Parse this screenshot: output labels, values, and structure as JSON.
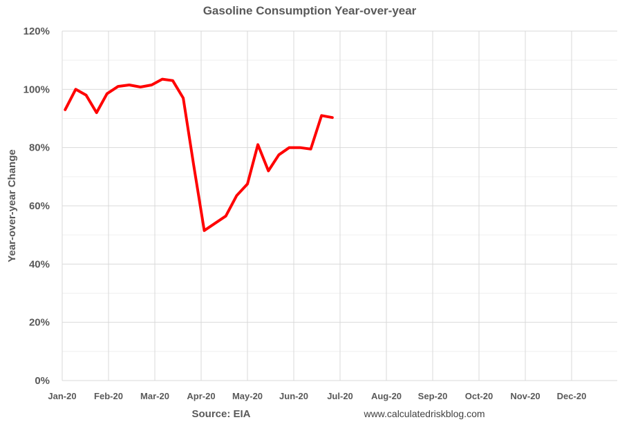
{
  "chart_data": {
    "type": "line",
    "title": "Gasoline Consumption Year-over-year",
    "ylabel": "Year-over-year Change",
    "xlabel": "",
    "ylim": [
      0,
      120
    ],
    "y_ticks": [
      "0%",
      "20%",
      "40%",
      "60%",
      "80%",
      "100%",
      "120%"
    ],
    "x_ticks": [
      "Jan-20",
      "Feb-20",
      "Mar-20",
      "Apr-20",
      "May-20",
      "Jun-20",
      "Jul-20",
      "Aug-20",
      "Sep-20",
      "Oct-20",
      "Nov-20",
      "Dec-20"
    ],
    "grid": true,
    "legend": "none",
    "series": [
      {
        "color": "#ff0000",
        "points": [
          {
            "x": "2020-01-03",
            "y": 93
          },
          {
            "x": "2020-01-10",
            "y": 100
          },
          {
            "x": "2020-01-17",
            "y": 98
          },
          {
            "x": "2020-01-24",
            "y": 92
          },
          {
            "x": "2020-01-31",
            "y": 98.5
          },
          {
            "x": "2020-02-07",
            "y": 101
          },
          {
            "x": "2020-02-14",
            "y": 101.5
          },
          {
            "x": "2020-02-21",
            "y": 100.8
          },
          {
            "x": "2020-02-28",
            "y": 101.5
          },
          {
            "x": "2020-03-06",
            "y": 103.5
          },
          {
            "x": "2020-03-13",
            "y": 103
          },
          {
            "x": "2020-03-20",
            "y": 97
          },
          {
            "x": "2020-03-27",
            "y": 74
          },
          {
            "x": "2020-04-03",
            "y": 51.5
          },
          {
            "x": "2020-04-10",
            "y": 54
          },
          {
            "x": "2020-04-17",
            "y": 56.5
          },
          {
            "x": "2020-04-24",
            "y": 63.5
          },
          {
            "x": "2020-05-01",
            "y": 67.5
          },
          {
            "x": "2020-05-08",
            "y": 81
          },
          {
            "x": "2020-05-15",
            "y": 72
          },
          {
            "x": "2020-05-22",
            "y": 77.5
          },
          {
            "x": "2020-05-29",
            "y": 80
          },
          {
            "x": "2020-06-05",
            "y": 80
          },
          {
            "x": "2020-06-12",
            "y": 79.5
          },
          {
            "x": "2020-06-19",
            "y": 91
          },
          {
            "x": "2020-06-26",
            "y": 90.3
          }
        ]
      }
    ]
  },
  "footer": {
    "source": "Source: EIA",
    "site": "www.calculatedriskblog.com"
  }
}
